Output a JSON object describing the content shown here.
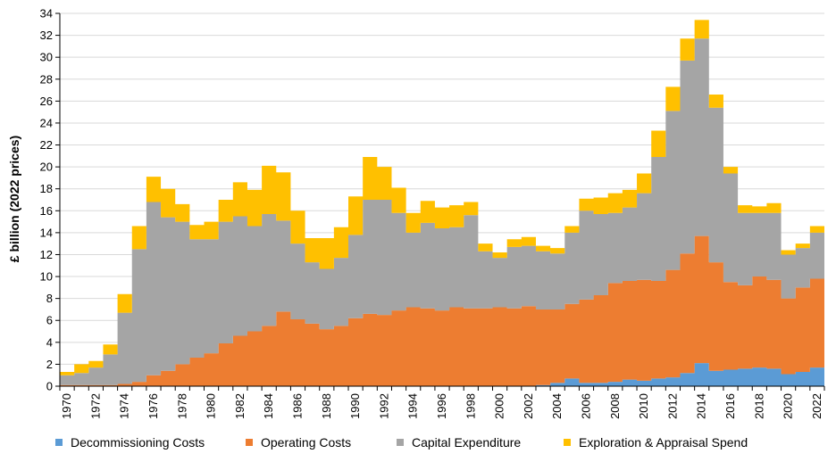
{
  "chart_data": {
    "type": "area",
    "stacked": true,
    "title": "",
    "xlabel": "",
    "ylabel": "£ billion (2022 prices)",
    "ylim": [
      0,
      34
    ],
    "yticks": [
      0,
      2,
      4,
      6,
      8,
      10,
      12,
      14,
      16,
      18,
      20,
      22,
      24,
      26,
      28,
      30,
      32,
      34
    ],
    "x": [
      1970,
      1971,
      1972,
      1973,
      1974,
      1975,
      1976,
      1977,
      1978,
      1979,
      1980,
      1981,
      1982,
      1983,
      1984,
      1985,
      1986,
      1987,
      1988,
      1989,
      1990,
      1991,
      1992,
      1993,
      1994,
      1995,
      1996,
      1997,
      1998,
      1999,
      2000,
      2001,
      2002,
      2003,
      2004,
      2005,
      2006,
      2007,
      2008,
      2009,
      2010,
      2011,
      2012,
      2013,
      2014,
      2015,
      2016,
      2017,
      2018,
      2019,
      2020,
      2021,
      2022
    ],
    "xtick_labels": [
      "1970",
      "1972",
      "1974",
      "1976",
      "1978",
      "1980",
      "1982",
      "1984",
      "1986",
      "1988",
      "1990",
      "1992",
      "1994",
      "1996",
      "1998",
      "2000",
      "2002",
      "2004",
      "2006",
      "2008",
      "2010",
      "2012",
      "2014",
      "2016",
      "2018",
      "2020",
      "2022"
    ],
    "grid": "horizontal",
    "legend": "bottom",
    "series": [
      {
        "name": "Decommissioning Costs",
        "color": "#5B9BD5",
        "values": [
          0,
          0,
          0,
          0,
          0,
          0,
          0,
          0,
          0,
          0,
          0,
          0,
          0,
          0,
          0,
          0,
          0,
          0,
          0,
          0,
          0,
          0,
          0,
          0,
          0,
          0,
          0,
          0,
          0,
          0,
          0,
          0,
          0,
          0.1,
          0.3,
          0.7,
          0.3,
          0.3,
          0.4,
          0.6,
          0.5,
          0.7,
          0.8,
          1.2,
          2.1,
          1.4,
          1.5,
          1.6,
          1.7,
          1.6,
          1.1,
          1.3,
          1.7
        ]
      },
      {
        "name": "Operating Costs",
        "color": "#ED7D31",
        "values": [
          0.1,
          0.1,
          0.1,
          0.1,
          0.2,
          0.4,
          1.0,
          1.4,
          2.0,
          2.6,
          3.0,
          3.9,
          4.6,
          5.0,
          5.5,
          6.8,
          6.1,
          5.7,
          5.2,
          5.5,
          6.2,
          6.6,
          6.5,
          6.9,
          7.2,
          7.1,
          6.9,
          7.2,
          7.1,
          7.1,
          7.2,
          7.1,
          7.3,
          6.9,
          6.7,
          6.8,
          7.6,
          8.0,
          9.0,
          9.0,
          9.2,
          8.9,
          9.8,
          10.9,
          11.6,
          9.9,
          8.0,
          7.6,
          8.3,
          8.1,
          6.9,
          7.7,
          8.1
        ]
      },
      {
        "name": "Capital Expenditure",
        "color": "#A5A5A5",
        "values": [
          0.9,
          1.1,
          1.6,
          2.8,
          6.5,
          12.1,
          15.8,
          14.0,
          13.0,
          10.8,
          10.4,
          11.1,
          10.9,
          9.6,
          10.2,
          8.3,
          6.9,
          5.6,
          5.5,
          6.2,
          7.6,
          10.4,
          10.5,
          8.9,
          6.8,
          7.8,
          7.5,
          7.3,
          8.5,
          5.2,
          4.5,
          5.6,
          5.5,
          5.3,
          5.1,
          6.5,
          8.1,
          7.4,
          6.4,
          6.7,
          7.9,
          11.3,
          14.5,
          17.6,
          18.0,
          14.1,
          9.9,
          6.6,
          5.8,
          6.1,
          4.0,
          3.6,
          4.2
        ]
      },
      {
        "name": "Exploration & Appraisal Spend",
        "color": "#FFC000",
        "values": [
          0.3,
          0.8,
          0.6,
          0.9,
          1.7,
          2.1,
          2.3,
          2.6,
          1.6,
          1.3,
          1.6,
          2.0,
          3.1,
          3.3,
          4.4,
          4.4,
          3.0,
          2.2,
          2.8,
          2.8,
          3.5,
          3.9,
          3.0,
          2.3,
          1.8,
          2.0,
          1.9,
          2.0,
          1.2,
          0.7,
          0.5,
          0.7,
          0.8,
          0.5,
          0.5,
          0.6,
          1.1,
          1.5,
          1.8,
          1.6,
          1.8,
          2.4,
          2.2,
          2.0,
          1.7,
          1.2,
          0.6,
          0.7,
          0.6,
          0.9,
          0.4,
          0.4,
          0.6
        ]
      }
    ]
  }
}
